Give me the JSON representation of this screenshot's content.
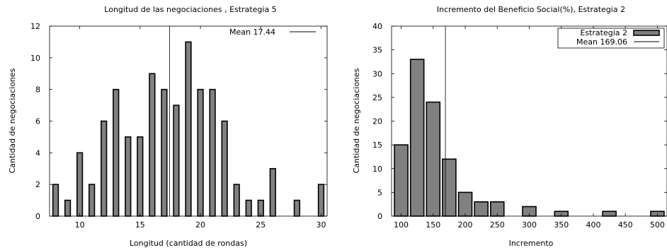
{
  "chart_data": [
    {
      "type": "bar",
      "title": "Longitud de las negociaciones , Estrategia 5",
      "xlabel": "Longitud (cantidad de rondas)",
      "ylabel": "Cantidad de negociaciones",
      "xlim": [
        7.5,
        30.5
      ],
      "ylim": [
        0,
        12
      ],
      "xticks": [
        10,
        15,
        20,
        25,
        30
      ],
      "yticks": [
        0,
        2,
        4,
        6,
        8,
        10,
        12
      ],
      "bar_width": 0.45,
      "bar_color": "#808080",
      "x": [
        8,
        9,
        10,
        11,
        12,
        13,
        14,
        15,
        16,
        17,
        18,
        19,
        20,
        21,
        22,
        23,
        24,
        25,
        26,
        28,
        30
      ],
      "values": [
        2,
        1,
        4,
        2,
        6,
        8,
        5,
        5,
        9,
        8,
        7,
        11,
        8,
        8,
        6,
        2,
        1,
        1,
        3,
        1,
        2
      ],
      "mean": 17.44,
      "legend": [
        {
          "label": "Mean 17.44",
          "kind": "line"
        }
      ],
      "legend_position": "top-right",
      "grid": false
    },
    {
      "type": "bar",
      "title": "Incremento del Beneficio Social(%), Estrategia 2",
      "xlabel": "Incremento",
      "ylabel": "Cantidad de negociaciones",
      "xlim": [
        85,
        515
      ],
      "ylim": [
        0,
        40
      ],
      "xticks": [
        100,
        150,
        200,
        250,
        300,
        350,
        400,
        450,
        500
      ],
      "yticks": [
        0,
        5,
        10,
        15,
        20,
        25,
        30,
        35,
        40
      ],
      "bar_width": 21,
      "bar_color": "#808080",
      "x": [
        100,
        125,
        150,
        175,
        200,
        225,
        250,
        300,
        350,
        425,
        500
      ],
      "values": [
        15,
        33,
        24,
        12,
        5,
        3,
        3,
        2,
        1,
        1,
        1
      ],
      "mean": 169.06,
      "legend": [
        {
          "label": "Estrategia 2",
          "kind": "bar"
        },
        {
          "label": "Mean 169.06",
          "kind": "line"
        }
      ],
      "legend_position": "top-right",
      "grid": false
    }
  ]
}
